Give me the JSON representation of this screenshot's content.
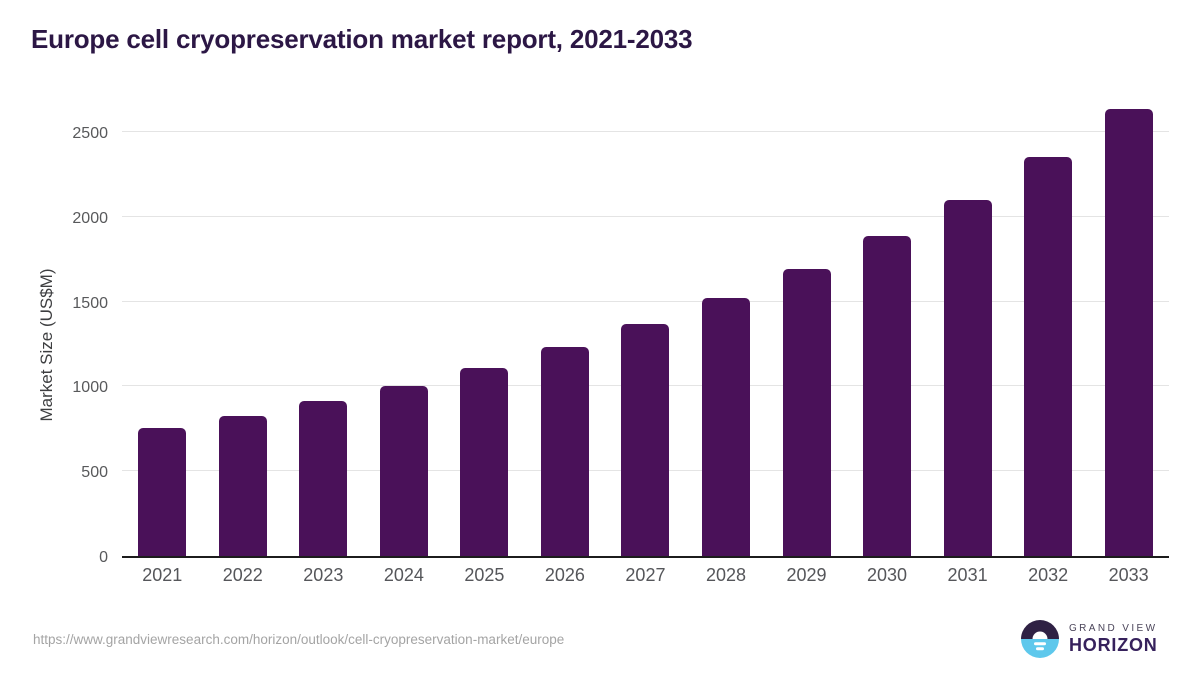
{
  "page": {
    "title": "Europe cell cryopreservation market report, 2021-2033"
  },
  "chart_data": {
    "type": "bar",
    "title": "Europe cell cryopreservation market report, 2021-2033",
    "categories": [
      "2021",
      "2022",
      "2023",
      "2024",
      "2025",
      "2026",
      "2027",
      "2028",
      "2029",
      "2030",
      "2031",
      "2032",
      "2033"
    ],
    "values": [
      755,
      825,
      915,
      1005,
      1110,
      1230,
      1370,
      1520,
      1690,
      1885,
      2100,
      2355,
      2635
    ],
    "xlabel": "",
    "ylabel": "Market Size (US$M)",
    "ylim": [
      0,
      2700
    ],
    "yticks": [
      0,
      500,
      1000,
      1500,
      2000,
      2500
    ],
    "grid": "horizontal",
    "legend": "none",
    "bar_color": "#4a1159"
  },
  "footer": {
    "source_url": "https://www.grandviewresearch.com/horizon/outlook/cell-cryopreservation-market/europe",
    "logo_line1": "GRAND VIEW",
    "logo_line2": "HORIZON"
  },
  "colors": {
    "title_text": "#2c1745",
    "bar": "#4a1159",
    "axis_text": "#58595b",
    "gridline": "#e4e4e4",
    "axis_line": "#1c1c1c",
    "url_text": "#a4a4a4",
    "logo_purple": "#2f2144",
    "logo_blue": "#5ec8ec",
    "logo_text": "#36215c"
  }
}
